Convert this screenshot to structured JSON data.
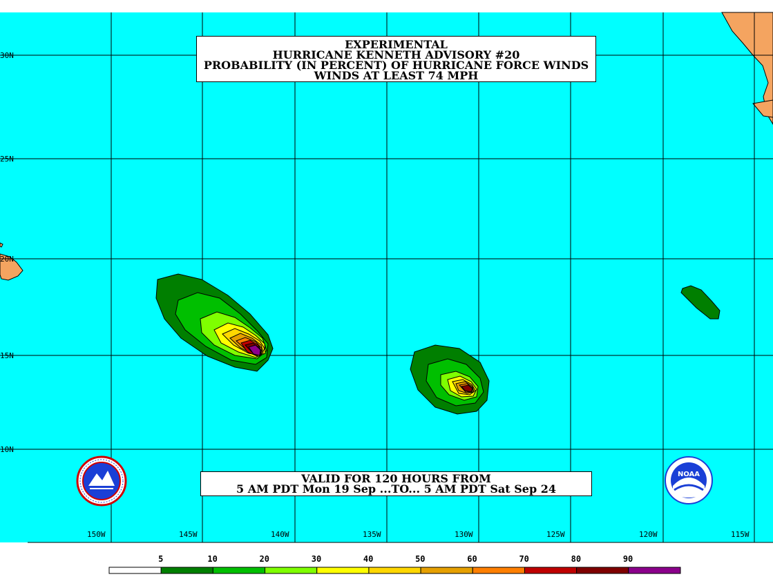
{
  "title": {
    "line1": "EXPERIMENTAL",
    "line2": "HURRICANE KENNETH ADVISORY #20",
    "line3": "PROBABILITY (IN PERCENT) OF HURRICANE FORCE WINDS",
    "line4": "WINDS AT LEAST 74 MPH"
  },
  "valid": {
    "line1": "VALID FOR 120 HOURS FROM",
    "line2": "5 AM PDT Mon 19 Sep ...TO... 5 AM PDT Sat Sep 24"
  },
  "lat_labels": [
    "30N",
    "25N",
    "20N",
    "15N",
    "10N"
  ],
  "lon_labels": [
    "150W",
    "145W",
    "140W",
    "135W",
    "130W",
    "125W",
    "120W",
    "115W"
  ],
  "legend": {
    "thresholds": [
      "5",
      "10",
      "20",
      "30",
      "40",
      "50",
      "60",
      "70",
      "80",
      "90"
    ],
    "colors": [
      "#ffffff",
      "#007f00",
      "#00bf00",
      "#7fff00",
      "#ffff00",
      "#ffd700",
      "#e6a000",
      "#ff7f00",
      "#bf0000",
      "#7f0000",
      "#8b008b"
    ]
  },
  "colors": {
    "ocean": "#00ffff",
    "land": "#f4a460",
    "grid": "#000000"
  },
  "logos": {
    "left": "nws-logo",
    "right": "noaa-logo",
    "noaa_text": "NOAA"
  }
}
